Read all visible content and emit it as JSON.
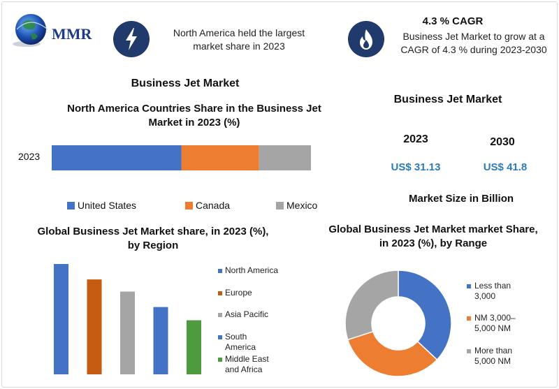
{
  "logo": {
    "text": "MMR"
  },
  "header": {
    "highlight_text": "North America held the largest market share in 2023",
    "cagr_title": "4.3 % CAGR",
    "cagr_text": "Business Jet Market to grow at a CAGR of 4.3 % during 2023-2030"
  },
  "market_title": "Business Jet Market",
  "colors": {
    "blue": "#4472c4",
    "orange": "#ed7d31",
    "gray": "#a5a5a5",
    "orange_dark": "#c55a11",
    "green": "#4e9a3e",
    "navy": "#1f3a6b",
    "value_blue": "#2b7bbd"
  },
  "icons": [
    "lightning-icon",
    "flame-icon",
    "globe-icon"
  ],
  "market_size": {
    "title": "Business Jet Market",
    "years": [
      {
        "year": "2023",
        "value": "US$ 31.13"
      },
      {
        "year": "2030",
        "value": "US$ 41.8"
      }
    ],
    "caption": "Market Size in Billion"
  },
  "chart_data": [
    {
      "type": "bar",
      "orientation": "horizontal-stacked",
      "title": "North America Countries Share in the  Business Jet Market in 2023 (%)",
      "categories": [
        "2023"
      ],
      "series": [
        {
          "name": "United States",
          "values": [
            50
          ]
        },
        {
          "name": "Canada",
          "values": [
            30
          ]
        },
        {
          "name": "Mexico",
          "values": [
            20
          ]
        }
      ],
      "legend": "bottom"
    },
    {
      "type": "bar",
      "title": "Global Business Jet Market share, in 2023 (%), by Region",
      "categories": [
        "North America",
        "Europe",
        "Asia Pacific",
        "South America",
        "Middle East and Africa"
      ],
      "values": [
        100,
        86,
        75,
        61,
        49
      ],
      "legend": "right"
    },
    {
      "type": "pie",
      "variant": "donut",
      "title": "Global Business Jet Market market Share, in 2023 (%), by Range",
      "categories": [
        "Less than 3,000",
        "NM 3,000– 5,000 NM",
        "More than 5,000 NM"
      ],
      "values": [
        37,
        33,
        30
      ],
      "legend": "right"
    }
  ]
}
